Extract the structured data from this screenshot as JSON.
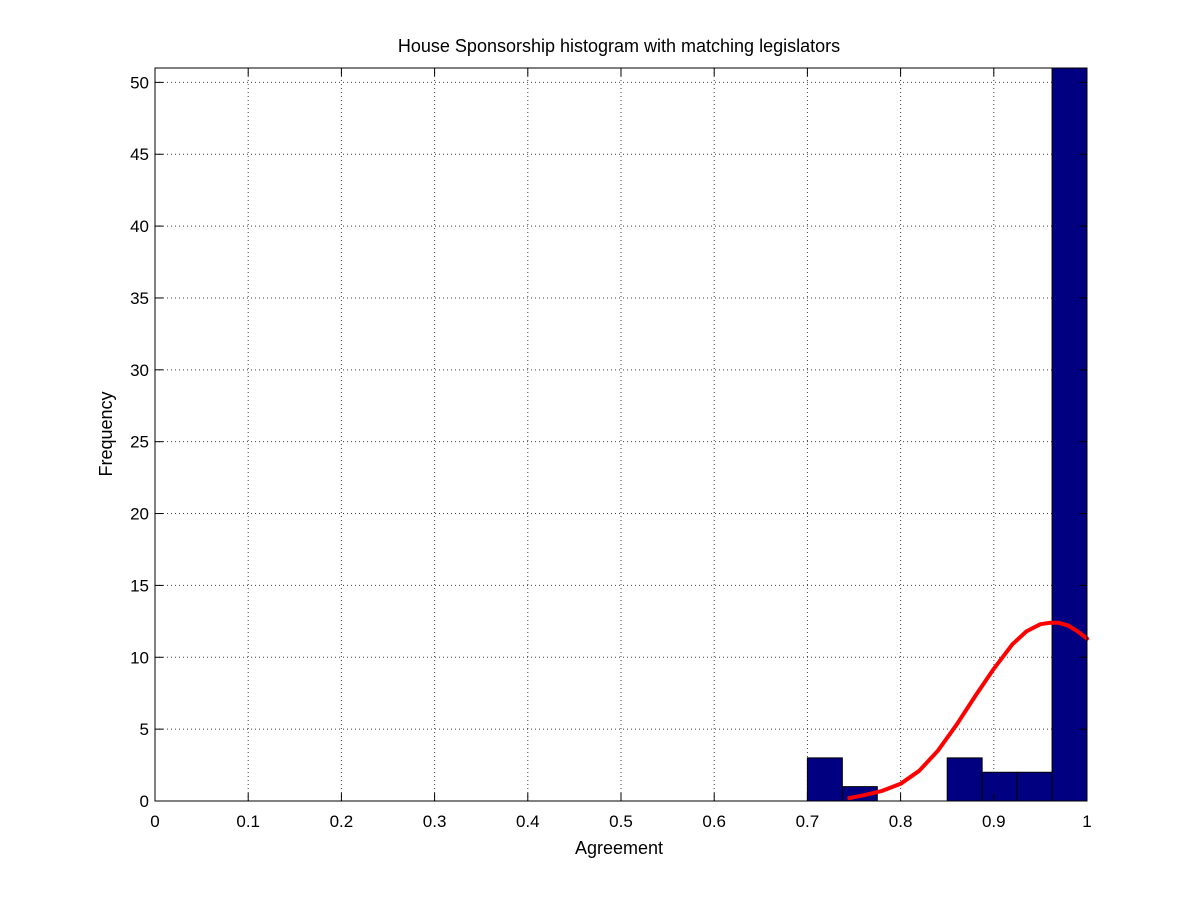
{
  "chart_data": {
    "type": "bar",
    "title": "House Sponsorship histogram with matching legislators",
    "xlabel": "Agreement",
    "ylabel": "Frequency",
    "xlim": [
      0,
      1
    ],
    "ylim": [
      0,
      51
    ],
    "xticks": [
      "0",
      "0.1",
      "0.2",
      "0.3",
      "0.4",
      "0.5",
      "0.6",
      "0.7",
      "0.8",
      "0.9",
      "1"
    ],
    "yticks": [
      "0",
      "5",
      "10",
      "15",
      "20",
      "25",
      "30",
      "35",
      "40",
      "45",
      "50"
    ],
    "grid": true,
    "bar_color": "#000080",
    "bins": [
      {
        "x0": 0.7,
        "x1": 0.7375,
        "count": 3
      },
      {
        "x0": 0.7375,
        "x1": 0.775,
        "count": 1
      },
      {
        "x0": 0.775,
        "x1": 0.8125,
        "count": 0
      },
      {
        "x0": 0.8125,
        "x1": 0.85,
        "count": 0
      },
      {
        "x0": 0.85,
        "x1": 0.8875,
        "count": 3
      },
      {
        "x0": 0.8875,
        "x1": 0.925,
        "count": 2
      },
      {
        "x0": 0.925,
        "x1": 0.9625,
        "count": 2
      },
      {
        "x0": 0.9625,
        "x1": 1.0,
        "count": 51
      }
    ],
    "fit_curve": {
      "color": "#ff0000",
      "x": [
        0.745,
        0.76,
        0.78,
        0.8,
        0.82,
        0.84,
        0.86,
        0.88,
        0.9,
        0.92,
        0.935,
        0.95,
        0.96,
        0.97,
        0.98,
        0.99,
        1.0
      ],
      "y": [
        0.2,
        0.4,
        0.7,
        1.2,
        2.1,
        3.5,
        5.3,
        7.3,
        9.2,
        10.9,
        11.8,
        12.3,
        12.4,
        12.4,
        12.2,
        11.8,
        11.3
      ]
    }
  }
}
